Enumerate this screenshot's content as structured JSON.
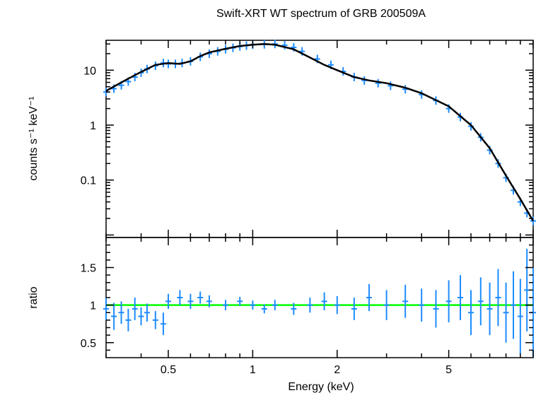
{
  "chart_data": [
    {
      "type": "scatter",
      "panel": "spectrum",
      "title": "Swift-XRT WT spectrum of GRB 200509A",
      "xlabel": "Energy (keV)",
      "ylabel": "counts s⁻¹ keV⁻¹",
      "xscale": "log",
      "yscale": "log",
      "xlim": [
        0.3,
        10
      ],
      "ylim": [
        0.009,
        35
      ],
      "yticks": [
        {
          "value": 0.1,
          "label": "0.1"
        },
        {
          "value": 1,
          "label": "1"
        },
        {
          "value": 10,
          "label": "10"
        }
      ],
      "grid": false,
      "series": [
        {
          "kind": "model",
          "color": "#000000",
          "x": [
            0.3,
            0.33,
            0.36,
            0.4,
            0.45,
            0.5,
            0.55,
            0.6,
            0.65,
            0.7,
            0.8,
            0.9,
            1.0,
            1.1,
            1.2,
            1.4,
            1.6,
            1.8,
            2.0,
            2.3,
            2.6,
            3.0,
            3.5,
            4.0,
            5.0,
            6.0,
            7.0,
            8.0,
            9.0,
            10.0
          ],
          "y": [
            4.2,
            5.5,
            7,
            9.3,
            12.5,
            13.5,
            13,
            14.5,
            18,
            21,
            24.5,
            27.5,
            29,
            30,
            29,
            24,
            17,
            12.5,
            10,
            7.5,
            6.5,
            5.8,
            4.8,
            3.8,
            2.2,
            1.0,
            0.38,
            0.12,
            0.045,
            0.018
          ]
        },
        {
          "kind": "data",
          "color": "#1e8cff",
          "x": [
            0.3,
            0.32,
            0.34,
            0.36,
            0.38,
            0.4,
            0.42,
            0.45,
            0.48,
            0.5,
            0.53,
            0.56,
            0.6,
            0.65,
            0.7,
            0.75,
            0.8,
            0.85,
            0.9,
            0.95,
            1.0,
            1.1,
            1.2,
            1.3,
            1.4,
            1.5,
            1.7,
            1.9,
            2.1,
            2.3,
            2.5,
            2.8,
            3.1,
            3.5,
            4.0,
            4.5,
            5.0,
            5.5,
            6.0,
            6.5,
            7.0,
            7.5,
            8.0,
            8.5,
            9.0,
            9.5,
            10.0
          ],
          "y": [
            4.0,
            4.6,
            5.3,
            6.2,
            7.5,
            9.0,
            10.5,
            12.0,
            13.5,
            13.0,
            13.0,
            13.5,
            14.5,
            17.5,
            20.0,
            22.0,
            24.0,
            25.5,
            27.0,
            28.0,
            29.0,
            29.5,
            30.0,
            28.5,
            26.0,
            22.0,
            16.0,
            12.5,
            9.5,
            7.5,
            6.5,
            5.8,
            5.2,
            4.5,
            3.6,
            2.8,
            2.0,
            1.4,
            0.95,
            0.6,
            0.35,
            0.2,
            0.11,
            0.065,
            0.04,
            0.025,
            0.018
          ]
        }
      ]
    },
    {
      "type": "scatter",
      "panel": "ratio",
      "xlabel": "Energy (keV)",
      "ylabel": "ratio",
      "xscale": "log",
      "yscale": "linear",
      "xlim": [
        0.3,
        10
      ],
      "ylim": [
        0.3,
        1.9
      ],
      "xticks": [
        {
          "value": 0.5,
          "label": "0.5"
        },
        {
          "value": 1,
          "label": "1"
        },
        {
          "value": 2,
          "label": "2"
        },
        {
          "value": 5,
          "label": "5"
        }
      ],
      "yticks": [
        {
          "value": 0.5,
          "label": "0.5"
        },
        {
          "value": 1,
          "label": "1"
        },
        {
          "value": 1.5,
          "label": "1.5"
        }
      ],
      "reference_line": {
        "y": 1,
        "color": "#00ff00"
      },
      "series": [
        {
          "kind": "data",
          "color": "#1e8cff",
          "x": [
            0.3,
            0.32,
            0.34,
            0.36,
            0.38,
            0.4,
            0.42,
            0.45,
            0.48,
            0.5,
            0.55,
            0.6,
            0.65,
            0.7,
            0.8,
            0.9,
            1.0,
            1.1,
            1.2,
            1.4,
            1.6,
            1.8,
            2.0,
            2.3,
            2.6,
            3.0,
            3.5,
            4.0,
            4.5,
            5.0,
            5.5,
            6.0,
            6.5,
            7.0,
            7.5,
            8.0,
            8.5,
            9.0,
            9.5,
            10.0
          ],
          "y": [
            0.95,
            0.85,
            0.9,
            0.8,
            0.95,
            0.85,
            0.9,
            0.8,
            0.75,
            1.05,
            1.1,
            1.05,
            1.1,
            1.05,
            1.0,
            1.05,
            1.0,
            0.95,
            1.0,
            0.95,
            1.0,
            1.05,
            1.0,
            0.95,
            1.1,
            1.0,
            1.05,
            1.0,
            0.95,
            1.05,
            1.1,
            0.9,
            1.05,
            0.95,
            1.1,
            0.9,
            1.0,
            0.85,
            1.2,
            0.9
          ],
          "err": [
            0.15,
            0.18,
            0.15,
            0.15,
            0.15,
            0.12,
            0.12,
            0.12,
            0.15,
            0.1,
            0.1,
            0.1,
            0.08,
            0.08,
            0.07,
            0.06,
            0.06,
            0.06,
            0.07,
            0.08,
            0.1,
            0.12,
            0.12,
            0.15,
            0.18,
            0.2,
            0.22,
            0.22,
            0.25,
            0.28,
            0.3,
            0.3,
            0.32,
            0.35,
            0.38,
            0.4,
            0.45,
            0.5,
            0.55,
            0.6
          ]
        }
      ]
    }
  ]
}
